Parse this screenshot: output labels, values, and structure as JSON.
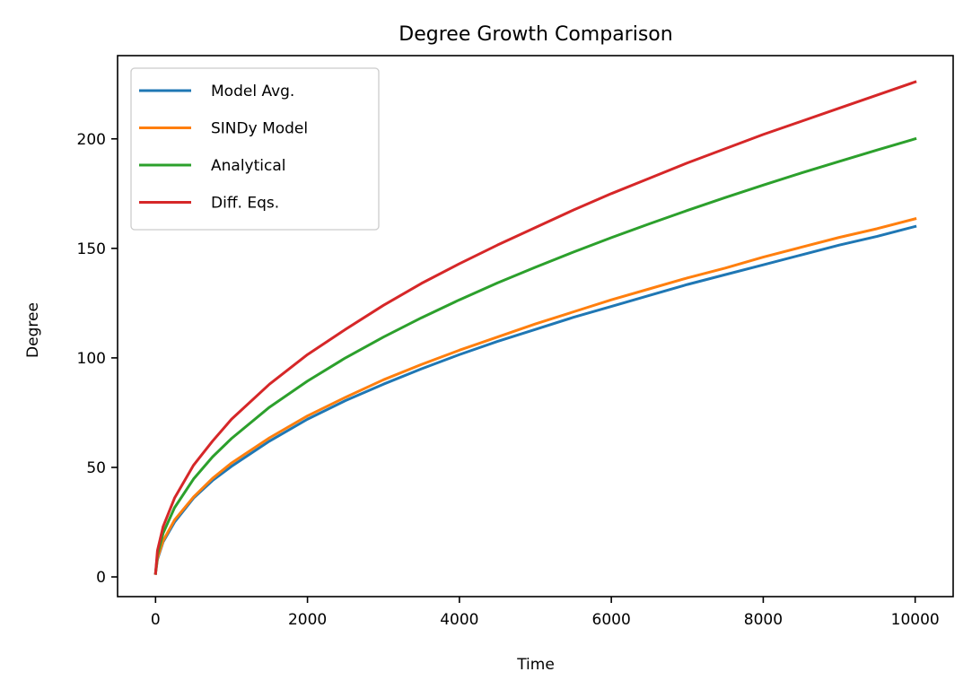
{
  "chart_data": {
    "type": "line",
    "title": "Degree Growth Comparison",
    "xlabel": "Time",
    "ylabel": "Degree",
    "xlim": [
      -500,
      10500
    ],
    "ylim": [
      -9,
      238
    ],
    "xticks": [
      0,
      2000,
      4000,
      6000,
      8000,
      10000
    ],
    "xtick_labels": [
      "0",
      "2000",
      "4000",
      "6000",
      "8000",
      "10000"
    ],
    "yticks": [
      0,
      50,
      100,
      150,
      200
    ],
    "ytick_labels": [
      "0",
      "50",
      "100",
      "150",
      "200"
    ],
    "grid": false,
    "legend_position": "upper-left",
    "series": [
      {
        "name": "Model Avg.",
        "color": "#1f77b4",
        "x": [
          0,
          25,
          100,
          250,
          500,
          750,
          1000,
          1500,
          2000,
          2500,
          3000,
          3500,
          4000,
          4500,
          5000,
          5500,
          6000,
          6500,
          7000,
          7500,
          8000,
          8500,
          9000,
          9500,
          10000
        ],
        "y": [
          1.6,
          8,
          16,
          25,
          36,
          44,
          50.5,
          62,
          72,
          80.5,
          88,
          95,
          101.5,
          107.5,
          113,
          118.5,
          123.5,
          128.5,
          133.5,
          138,
          142.5,
          147,
          151.5,
          155.5,
          160
        ]
      },
      {
        "name": "SINDy Model",
        "color": "#ff7f0e",
        "x": [
          0,
          25,
          100,
          250,
          500,
          750,
          1000,
          1500,
          2000,
          2500,
          3000,
          3500,
          4000,
          4500,
          5000,
          5500,
          6000,
          6500,
          7000,
          7500,
          8000,
          8500,
          9000,
          9500,
          10000
        ],
        "y": [
          1.6,
          8.5,
          16.5,
          26,
          36.5,
          45,
          52,
          63.5,
          73.5,
          82,
          90,
          97,
          103.5,
          109.5,
          115.5,
          121,
          126.5,
          131.5,
          136.5,
          141,
          146,
          150.5,
          155,
          159,
          163.5
        ]
      },
      {
        "name": "Analytical",
        "color": "#2ca02c",
        "x": [
          0,
          25,
          100,
          250,
          500,
          750,
          1000,
          1500,
          2000,
          2500,
          3000,
          3500,
          4000,
          4500,
          5000,
          5500,
          6000,
          6500,
          7000,
          7500,
          8000,
          8500,
          9000,
          9500,
          10000
        ],
        "y": [
          1.6,
          10,
          20,
          31.6,
          44.7,
          54.8,
          63.2,
          77.5,
          89.4,
          100,
          109.5,
          118.3,
          126.5,
          134.2,
          141.4,
          148.3,
          154.9,
          161.2,
          167.3,
          173.2,
          178.9,
          184.4,
          189.7,
          194.9,
          200
        ]
      },
      {
        "name": "Diff. Eqs.",
        "color": "#d62728",
        "x": [
          0,
          25,
          100,
          250,
          500,
          750,
          1000,
          1500,
          2000,
          2500,
          3000,
          3500,
          4000,
          4500,
          5000,
          5500,
          6000,
          6500,
          7000,
          7500,
          8000,
          8500,
          9000,
          9500,
          10000
        ],
        "y": [
          1.6,
          12,
          23,
          36,
          51,
          62,
          72,
          88,
          101.5,
          113,
          124,
          134,
          143,
          151.5,
          159.5,
          167.5,
          175,
          182,
          189,
          195.5,
          202,
          208,
          214,
          220,
          226
        ]
      }
    ]
  }
}
